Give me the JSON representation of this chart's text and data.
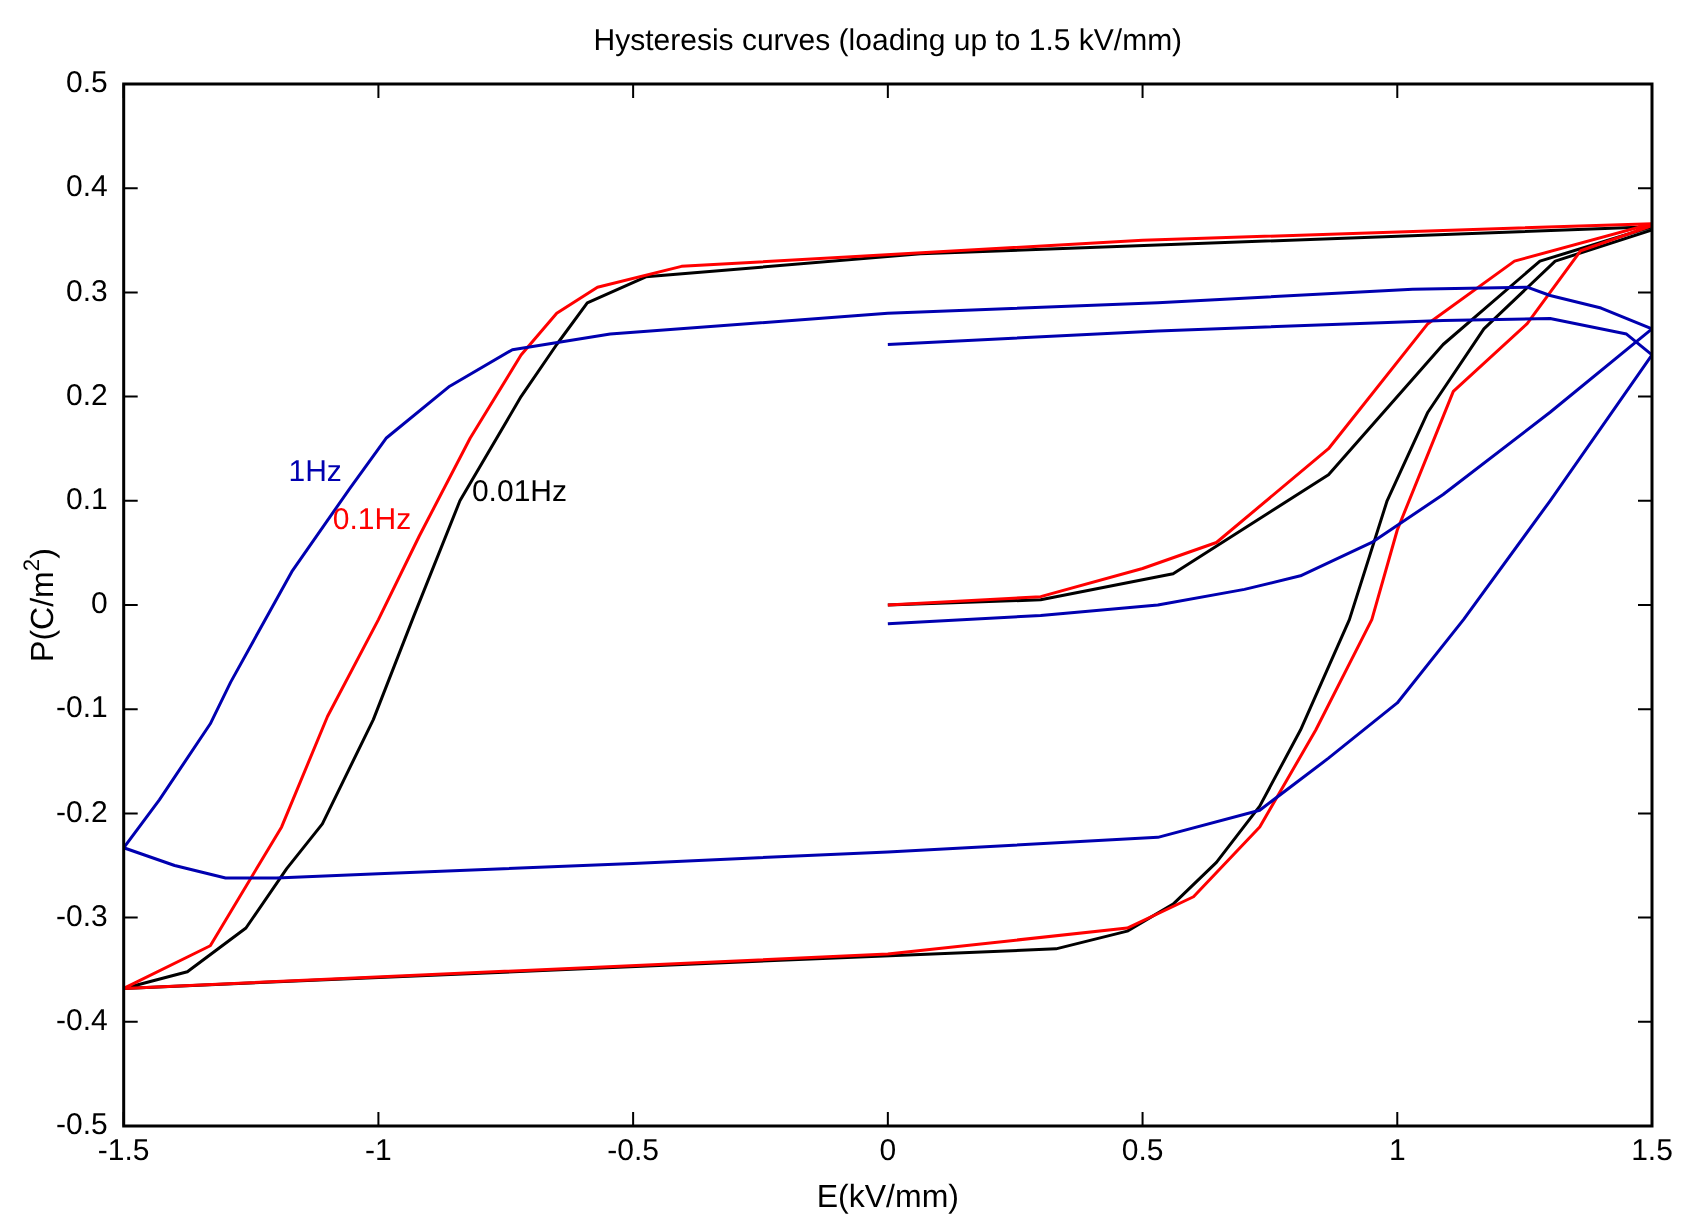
{
  "chart_data": {
    "type": "line",
    "title": "Hysteresis curves (loading up to 1.5 kV/mm)",
    "xlabel": "E(kV/mm)",
    "ylabel": "P(C/m$^{2}$)",
    "xlim": [
      -1.5,
      1.5
    ],
    "xticks": [
      -1.5,
      -1,
      -0.5,
      0,
      0.5,
      1,
      1.5
    ],
    "ylim": [
      -0.5,
      0.5
    ],
    "yticks": [
      -0.5,
      -0.4,
      -0.3,
      -0.2,
      -0.1,
      0,
      0.1,
      0.2,
      0.3,
      0.4,
      0.5
    ],
    "grid": false,
    "legend": false,
    "marker": "none",
    "line_style": "solid",
    "series": [
      {
        "name": "1Hz",
        "color": "#0000b0",
        "x": [
          0,
          0.3,
          0.53,
          0.7,
          0.81,
          0.95,
          1.09,
          1.3,
          1.5,
          1.4,
          1.3,
          1.255,
          1.03,
          0.53,
          0,
          -0.545,
          -0.737,
          -0.86,
          -0.985,
          -1.056,
          -1.17,
          -1.29,
          -1.33,
          -1.43,
          -1.5,
          -1.4,
          -1.3,
          -1.2,
          -1,
          -0.5,
          0,
          0.53,
          0.73,
          0.865,
          1,
          1.13,
          1.3,
          1.5,
          1.45,
          1.3,
          1.09,
          0.53,
          0
        ],
        "values": [
          -0.018,
          -0.01,
          0,
          0.015,
          0.028,
          0.06,
          0.106,
          0.185,
          0.265,
          0.285,
          0.297,
          0.305,
          0.303,
          0.29,
          0.28,
          0.26,
          0.245,
          0.21,
          0.16,
          0.112,
          0.032,
          -0.074,
          -0.114,
          -0.187,
          -0.233,
          -0.25,
          -0.262,
          -0.262,
          -0.258,
          -0.248,
          -0.237,
          -0.223,
          -0.197,
          -0.147,
          -0.094,
          -0.014,
          0.1,
          0.24,
          0.26,
          0.275,
          0.273,
          0.263,
          0.25
        ]
      },
      {
        "name": "0.1Hz",
        "color": "#ff0000",
        "x": [
          0,
          0.3,
          0.5,
          0.645,
          0.865,
          1.06,
          1.23,
          1.5,
          0.5,
          -0.405,
          -0.57,
          -0.65,
          -0.72,
          -0.82,
          -0.92,
          -1,
          -1.1,
          -1.19,
          -1.33,
          -1.5,
          0,
          0.47,
          0.6,
          0.73,
          0.84,
          0.95,
          1,
          1.11,
          1.255,
          1.36,
          1.5
        ],
        "values": [
          0,
          0.008,
          0.035,
          0.06,
          0.15,
          0.27,
          0.33,
          0.366,
          0.35,
          0.325,
          0.305,
          0.28,
          0.24,
          0.16,
          0.066,
          -0.014,
          -0.107,
          -0.213,
          -0.327,
          -0.368,
          -0.335,
          -0.31,
          -0.28,
          -0.213,
          -0.12,
          -0.014,
          0.072,
          0.205,
          0.27,
          0.34,
          0.364
        ]
      },
      {
        "name": "0.01Hz",
        "color": "#000000",
        "x": [
          0,
          0.3,
          0.56,
          0.865,
          1.09,
          1.28,
          1.5,
          0.064,
          -0.475,
          -0.59,
          -0.65,
          -0.72,
          -0.84,
          -0.93,
          -1.01,
          -1.11,
          -1.18,
          -1.26,
          -1.375,
          -1.5,
          -0.02,
          0.33,
          0.47,
          0.56,
          0.645,
          0.73,
          0.81,
          0.906,
          0.98,
          1.06,
          1.17,
          1.31,
          1.5
        ],
        "values": [
          0,
          0.005,
          0.03,
          0.125,
          0.25,
          0.33,
          0.363,
          0.337,
          0.315,
          0.29,
          0.25,
          0.2,
          0.1,
          -0.01,
          -0.11,
          -0.21,
          -0.253,
          -0.31,
          -0.352,
          -0.368,
          -0.337,
          -0.33,
          -0.313,
          -0.287,
          -0.247,
          -0.193,
          -0.12,
          -0.014,
          0.1,
          0.185,
          0.265,
          0.33,
          0.36
        ]
      }
    ]
  }
}
